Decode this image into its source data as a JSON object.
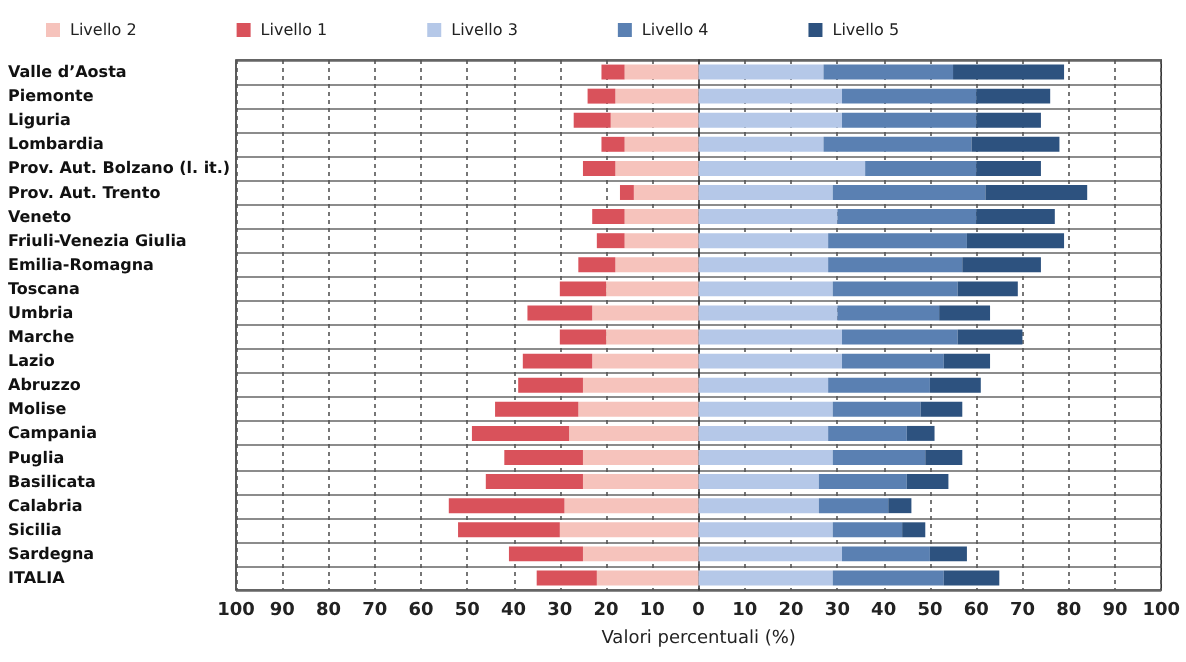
{
  "chart_data": {
    "type": "bar",
    "orientation": "horizontal",
    "stacked": true,
    "xlabel": "Valori percentuali (%)",
    "categories": [
      "Valle d’Aosta",
      "Piemonte",
      "Liguria",
      "Lombardia",
      "Prov. Aut. Bolzano (l. it.)",
      "Prov. Aut. Trento",
      "Veneto",
      "Friuli-Venezia Giulia",
      "Emilia-Romagna",
      "Toscana",
      "Umbria",
      "Marche",
      "Lazio",
      "Abruzzo",
      "Molise",
      "Campania",
      "Puglia",
      "Basilicata",
      "Calabria",
      "Sicilia",
      "Sardegna",
      "ITALIA"
    ],
    "series": [
      {
        "name": "Livello 2",
        "color": "#f6c3bc",
        "values": [
          -16,
          -18,
          -19,
          -16,
          -18,
          -14,
          -16,
          -16,
          -18,
          -20,
          -23,
          -20,
          -23,
          -25,
          -26,
          -28,
          -25,
          -25,
          -29,
          -30,
          -25,
          -22
        ]
      },
      {
        "name": "Livello 1",
        "color": "#d9525b",
        "values": [
          -5,
          -6,
          -8,
          -5,
          -7,
          -3,
          -7,
          -6,
          -8,
          -10,
          -14,
          -10,
          -15,
          -14,
          -18,
          -21,
          -17,
          -21,
          -25,
          -22,
          -16,
          -13
        ]
      },
      {
        "name": "Livello 3",
        "color": "#b5c8e8",
        "values": [
          27,
          31,
          31,
          27,
          36,
          29,
          30,
          28,
          28,
          29,
          30,
          31,
          31,
          28,
          29,
          28,
          29,
          26,
          26,
          29,
          31,
          29
        ]
      },
      {
        "name": "Livello 4",
        "color": "#5a80b2",
        "values": [
          28,
          29,
          29,
          32,
          24,
          33,
          30,
          30,
          29,
          27,
          22,
          25,
          22,
          22,
          19,
          17,
          20,
          19,
          15,
          15,
          19,
          24
        ]
      },
      {
        "name": "Livello 5",
        "color": "#2d527f",
        "values": [
          24,
          16,
          14,
          19,
          14,
          22,
          17,
          21,
          17,
          13,
          11,
          14,
          10,
          11,
          9,
          6,
          8,
          9,
          5,
          5,
          8,
          12
        ]
      }
    ],
    "xlim": [
      -100,
      100
    ],
    "xticks": [
      {
        "value": -100,
        "label": "100"
      },
      {
        "value": -90,
        "label": "90"
      },
      {
        "value": -80,
        "label": "80"
      },
      {
        "value": -70,
        "label": "70"
      },
      {
        "value": -60,
        "label": "60"
      },
      {
        "value": -50,
        "label": "50"
      },
      {
        "value": -40,
        "label": "40"
      },
      {
        "value": -30,
        "label": "30"
      },
      {
        "value": -20,
        "label": "20"
      },
      {
        "value": -10,
        "label": "10"
      },
      0,
      10,
      20,
      30,
      40,
      50,
      60,
      70,
      80,
      90,
      100
    ],
    "grid": true,
    "legend": "top"
  }
}
